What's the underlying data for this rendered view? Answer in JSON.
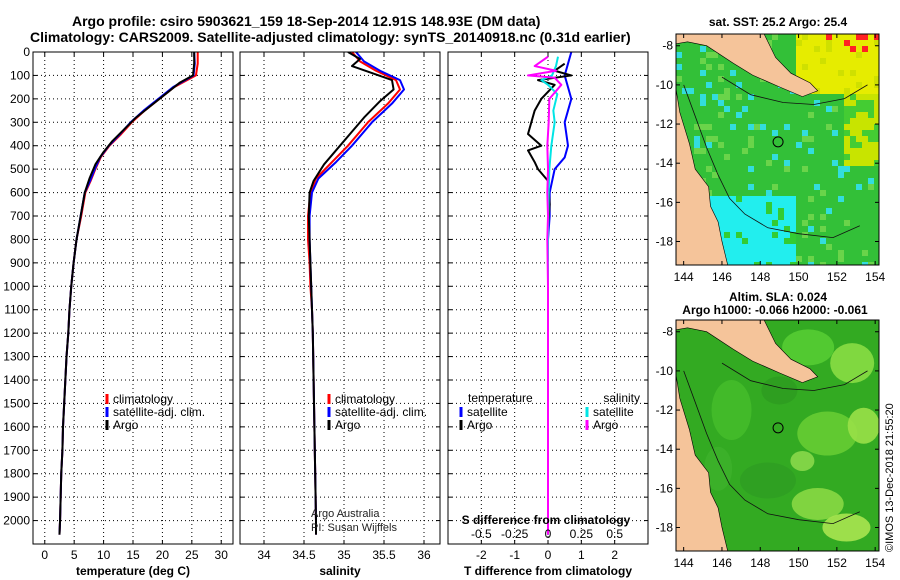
{
  "header": {
    "line1": "Argo profile: csiro 5903621_159 18-Sep-2014 12.91S 148.93E (DM data)",
    "line2": "Climatology: CARS2009. Satellite-adjusted climatology: synTS_20140918.nc (0.31d earlier)"
  },
  "colors": {
    "climatology": "#ff0000",
    "satellite": "#0000ff",
    "argo": "#000000",
    "salinity_satellite": "#00e5e5",
    "salinity_argo": "#ff00ff",
    "land": "#f5c49a"
  },
  "credits": {
    "argo_australia": "Argo Australia",
    "pi": "PI: Susan Wijffels",
    "imos": "©IMOS 13-Dec-2018 21:55:20"
  },
  "chart_data": [
    {
      "id": "temperature",
      "type": "line",
      "xlabel": "temperature (deg C)",
      "ylabel": "",
      "xlim": [
        -2,
        32
      ],
      "ylim": [
        2100,
        0
      ],
      "xticks": [
        0,
        5,
        10,
        15,
        20,
        25,
        30
      ],
      "yticks": [
        0,
        100,
        200,
        300,
        400,
        500,
        600,
        700,
        800,
        900,
        1000,
        1100,
        1200,
        1300,
        1400,
        1500,
        1600,
        1700,
        1800,
        1900,
        2000
      ],
      "legend": {
        "position": "lower-right",
        "entries": [
          "climatology",
          "satellite-adj. clim.",
          "Argo"
        ]
      },
      "series": [
        {
          "name": "climatology",
          "color": "#ff0000",
          "points": [
            [
              26.0,
              0
            ],
            [
              26.0,
              50
            ],
            [
              25.7,
              100
            ],
            [
              22.0,
              150
            ],
            [
              19.5,
              200
            ],
            [
              17.0,
              250
            ],
            [
              14.8,
              300
            ],
            [
              13.0,
              350
            ],
            [
              11.0,
              400
            ],
            [
              9.5,
              450
            ],
            [
              8.6,
              500
            ],
            [
              7.8,
              550
            ],
            [
              6.9,
              600
            ],
            [
              6.2,
              700
            ],
            [
              5.4,
              800
            ],
            [
              4.9,
              900
            ],
            [
              4.5,
              1000
            ],
            [
              4.2,
              1100
            ],
            [
              4.0,
              1200
            ],
            [
              3.7,
              1300
            ],
            [
              3.5,
              1400
            ],
            [
              3.3,
              1500
            ],
            [
              3.1,
              1600
            ],
            [
              3.0,
              1700
            ],
            [
              2.8,
              1800
            ],
            [
              2.7,
              1900
            ],
            [
              2.6,
              2000
            ],
            [
              2.5,
              2060
            ]
          ]
        },
        {
          "name": "satellite-adj. clim.",
          "color": "#0000ff",
          "points": [
            [
              25.4,
              0
            ],
            [
              25.5,
              50
            ],
            [
              25.3,
              100
            ],
            [
              21.8,
              150
            ],
            [
              19.3,
              200
            ],
            [
              16.8,
              250
            ],
            [
              14.6,
              300
            ],
            [
              12.8,
              350
            ],
            [
              10.9,
              400
            ],
            [
              9.4,
              450
            ],
            [
              8.5,
              500
            ],
            [
              7.7,
              550
            ],
            [
              6.8,
              600
            ],
            [
              6.1,
              700
            ],
            [
              5.4,
              800
            ],
            [
              4.9,
              900
            ],
            [
              4.5,
              1000
            ],
            [
              4.2,
              1100
            ],
            [
              4.0,
              1200
            ],
            [
              3.7,
              1300
            ],
            [
              3.5,
              1400
            ],
            [
              3.3,
              1500
            ],
            [
              3.1,
              1600
            ],
            [
              3.0,
              1700
            ],
            [
              2.8,
              1800
            ],
            [
              2.7,
              1900
            ],
            [
              2.6,
              2000
            ],
            [
              2.5,
              2060
            ]
          ]
        },
        {
          "name": "Argo",
          "color": "#000000",
          "points": [
            [
              25.4,
              0
            ],
            [
              25.4,
              50
            ],
            [
              25.2,
              100
            ],
            [
              23.0,
              130
            ],
            [
              20.5,
              180
            ],
            [
              18.0,
              230
            ],
            [
              15.5,
              280
            ],
            [
              13.5,
              330
            ],
            [
              11.5,
              380
            ],
            [
              9.9,
              430
            ],
            [
              8.6,
              480
            ],
            [
              7.6,
              540
            ],
            [
              6.8,
              600
            ],
            [
              6.1,
              700
            ],
            [
              5.4,
              800
            ],
            [
              4.9,
              900
            ],
            [
              4.5,
              1000
            ],
            [
              4.2,
              1100
            ],
            [
              4.0,
              1200
            ],
            [
              3.7,
              1300
            ],
            [
              3.5,
              1400
            ],
            [
              3.3,
              1500
            ],
            [
              3.1,
              1600
            ],
            [
              3.0,
              1700
            ],
            [
              2.8,
              1800
            ],
            [
              2.7,
              1900
            ],
            [
              2.6,
              2000
            ],
            [
              2.5,
              2060
            ]
          ]
        }
      ]
    },
    {
      "id": "salinity",
      "type": "line",
      "xlabel": "salinity",
      "ylabel": "",
      "xlim": [
        33.7,
        36.2
      ],
      "ylim": [
        2100,
        0
      ],
      "xticks": [
        34,
        34.5,
        35,
        35.5,
        36
      ],
      "legend": {
        "position": "lower-right",
        "entries": [
          "climatology",
          "satellite-adj. clim.",
          "Argo"
        ]
      },
      "series": [
        {
          "name": "climatology",
          "color": "#ff0000",
          "points": [
            [
              35.1,
              0
            ],
            [
              35.2,
              40
            ],
            [
              35.4,
              80
            ],
            [
              35.65,
              120
            ],
            [
              35.7,
              160
            ],
            [
              35.55,
              220
            ],
            [
              35.3,
              300
            ],
            [
              35.05,
              400
            ],
            [
              34.85,
              470
            ],
            [
              34.65,
              540
            ],
            [
              34.58,
              600
            ],
            [
              34.55,
              700
            ],
            [
              34.55,
              800
            ],
            [
              34.57,
              900
            ],
            [
              34.58,
              1000
            ],
            [
              34.6,
              1100
            ],
            [
              34.61,
              1200
            ],
            [
              34.62,
              1400
            ],
            [
              34.63,
              1600
            ],
            [
              34.64,
              1800
            ],
            [
              34.65,
              2000
            ],
            [
              34.65,
              2060
            ]
          ]
        },
        {
          "name": "satellite-adj. clim.",
          "color": "#0000ff",
          "points": [
            [
              35.15,
              0
            ],
            [
              35.25,
              40
            ],
            [
              35.45,
              80
            ],
            [
              35.7,
              120
            ],
            [
              35.75,
              160
            ],
            [
              35.6,
              220
            ],
            [
              35.35,
              300
            ],
            [
              35.1,
              400
            ],
            [
              34.9,
              470
            ],
            [
              34.68,
              540
            ],
            [
              34.6,
              600
            ],
            [
              34.57,
              700
            ],
            [
              34.57,
              800
            ],
            [
              34.58,
              900
            ],
            [
              34.59,
              1000
            ],
            [
              34.6,
              1100
            ],
            [
              34.61,
              1200
            ],
            [
              34.62,
              1400
            ],
            [
              34.63,
              1600
            ],
            [
              34.64,
              1800
            ],
            [
              34.65,
              2000
            ],
            [
              34.65,
              2060
            ]
          ]
        },
        {
          "name": "Argo",
          "color": "#000000",
          "points": [
            [
              35.05,
              0
            ],
            [
              35.2,
              30
            ],
            [
              35.1,
              60
            ],
            [
              35.35,
              90
            ],
            [
              35.6,
              120
            ],
            [
              35.62,
              160
            ],
            [
              35.45,
              210
            ],
            [
              35.25,
              280
            ],
            [
              35.1,
              340
            ],
            [
              34.95,
              400
            ],
            [
              34.75,
              480
            ],
            [
              34.62,
              550
            ],
            [
              34.57,
              600
            ],
            [
              34.56,
              700
            ],
            [
              34.57,
              800
            ],
            [
              34.58,
              900
            ],
            [
              34.59,
              1000
            ],
            [
              34.6,
              1100
            ],
            [
              34.61,
              1200
            ],
            [
              34.62,
              1400
            ],
            [
              34.63,
              1600
            ],
            [
              34.64,
              1800
            ],
            [
              34.65,
              2000
            ],
            [
              34.65,
              2060
            ]
          ]
        }
      ]
    },
    {
      "id": "difference",
      "type": "line",
      "xlabel": "T difference from climatology",
      "top_label": "S difference from climatology",
      "xlim": [
        -3,
        3
      ],
      "ylim": [
        2100,
        0
      ],
      "xticks": [
        -2,
        -1,
        0,
        1,
        2
      ],
      "top_ticks": [
        "-0.5",
        "-0.25",
        "0",
        "0.25",
        "0.5"
      ],
      "top_tick_values": [
        -0.5,
        -0.25,
        0,
        0.25,
        0.5
      ],
      "s_scale": 4,
      "legend_left": {
        "title": "temperature",
        "entries": [
          "satellite",
          "Argo"
        ]
      },
      "legend_right": {
        "title": "salinity",
        "entries": [
          "satellite",
          "Argo"
        ]
      },
      "series": [
        {
          "name": "temperature satellite",
          "color": "#0000ff",
          "points": [
            [
              0.7,
              0
            ],
            [
              0.6,
              50
            ],
            [
              0.5,
              100
            ],
            [
              0.6,
              150
            ],
            [
              0.7,
              200
            ],
            [
              0.6,
              250
            ],
            [
              0.5,
              300
            ],
            [
              0.6,
              400
            ],
            [
              0.5,
              450
            ],
            [
              0.2,
              500
            ],
            [
              0.05,
              600
            ],
            [
              0.05,
              700
            ],
            [
              0.0,
              800
            ],
            [
              0.0,
              1000
            ],
            [
              0.0,
              1500
            ],
            [
              0.0,
              2060
            ]
          ]
        },
        {
          "name": "temperature Argo",
          "color": "#000000",
          "points": [
            [
              0.5,
              50
            ],
            [
              0.2,
              80
            ],
            [
              0.7,
              100
            ],
            [
              -0.3,
              120
            ],
            [
              0.2,
              140
            ],
            [
              -0.2,
              200
            ],
            [
              -0.4,
              250
            ],
            [
              -0.5,
              300
            ],
            [
              -0.6,
              350
            ],
            [
              -0.2,
              400
            ],
            [
              -0.6,
              420
            ],
            [
              -0.4,
              470
            ],
            [
              -0.3,
              500
            ],
            [
              0.0,
              550
            ],
            [
              0.05,
              650
            ],
            [
              0.0,
              750
            ],
            [
              0.0,
              1000
            ],
            [
              0.0,
              1500
            ],
            [
              0.0,
              2060
            ]
          ]
        },
        {
          "name": "salinity satellite",
          "color": "#00e5e5",
          "points": [
            [
              0.075,
              20
            ],
            [
              0.06,
              60
            ],
            [
              0.03,
              100
            ],
            [
              -0.05,
              120
            ],
            [
              0.0,
              140
            ],
            [
              0.07,
              180
            ],
            [
              0.04,
              250
            ],
            [
              0.05,
              300
            ],
            [
              0.025,
              400
            ],
            [
              0.01,
              500
            ],
            [
              0.005,
              600
            ],
            [
              0.0,
              800
            ],
            [
              0.0,
              1200
            ],
            [
              0.0,
              2060
            ]
          ]
        },
        {
          "name": "salinity Argo",
          "color": "#ff00ff",
          "points": [
            [
              0.0,
              20
            ],
            [
              -0.1,
              60
            ],
            [
              0.06,
              80
            ],
            [
              -0.15,
              100
            ],
            [
              0.05,
              110
            ],
            [
              0.1,
              140
            ],
            [
              0.01,
              200
            ],
            [
              0.005,
              300
            ],
            [
              -0.005,
              400
            ],
            [
              0.0,
              500
            ],
            [
              -0.005,
              600
            ],
            [
              0.0,
              700
            ],
            [
              -0.005,
              800
            ],
            [
              0.0,
              1000
            ],
            [
              0.0,
              2060
            ]
          ]
        }
      ]
    },
    {
      "id": "sst_map",
      "type": "heatmap",
      "title": "sat. SST: 25.2  Argo: 25.4",
      "xticks": [
        144,
        146,
        148,
        150,
        152,
        154
      ],
      "yticks": [
        -8,
        -10,
        -12,
        -14,
        -16,
        -18
      ],
      "xlim": [
        143.6,
        154.2
      ],
      "ylim": [
        -19.2,
        -7.4
      ],
      "profile_location": [
        148.93,
        -12.91
      ]
    },
    {
      "id": "sla_map",
      "type": "heatmap",
      "title": "Altim. SLA: 0.024",
      "subtitle": "Argo h1000: -0.066 h2000: -0.061",
      "xticks": [
        144,
        146,
        148,
        150,
        152,
        154
      ],
      "yticks": [
        -8,
        -10,
        -12,
        -14,
        -16,
        -18
      ],
      "xlim": [
        143.6,
        154.2
      ],
      "ylim": [
        -19.2,
        -7.4
      ],
      "profile_location": [
        148.93,
        -12.91
      ]
    }
  ]
}
